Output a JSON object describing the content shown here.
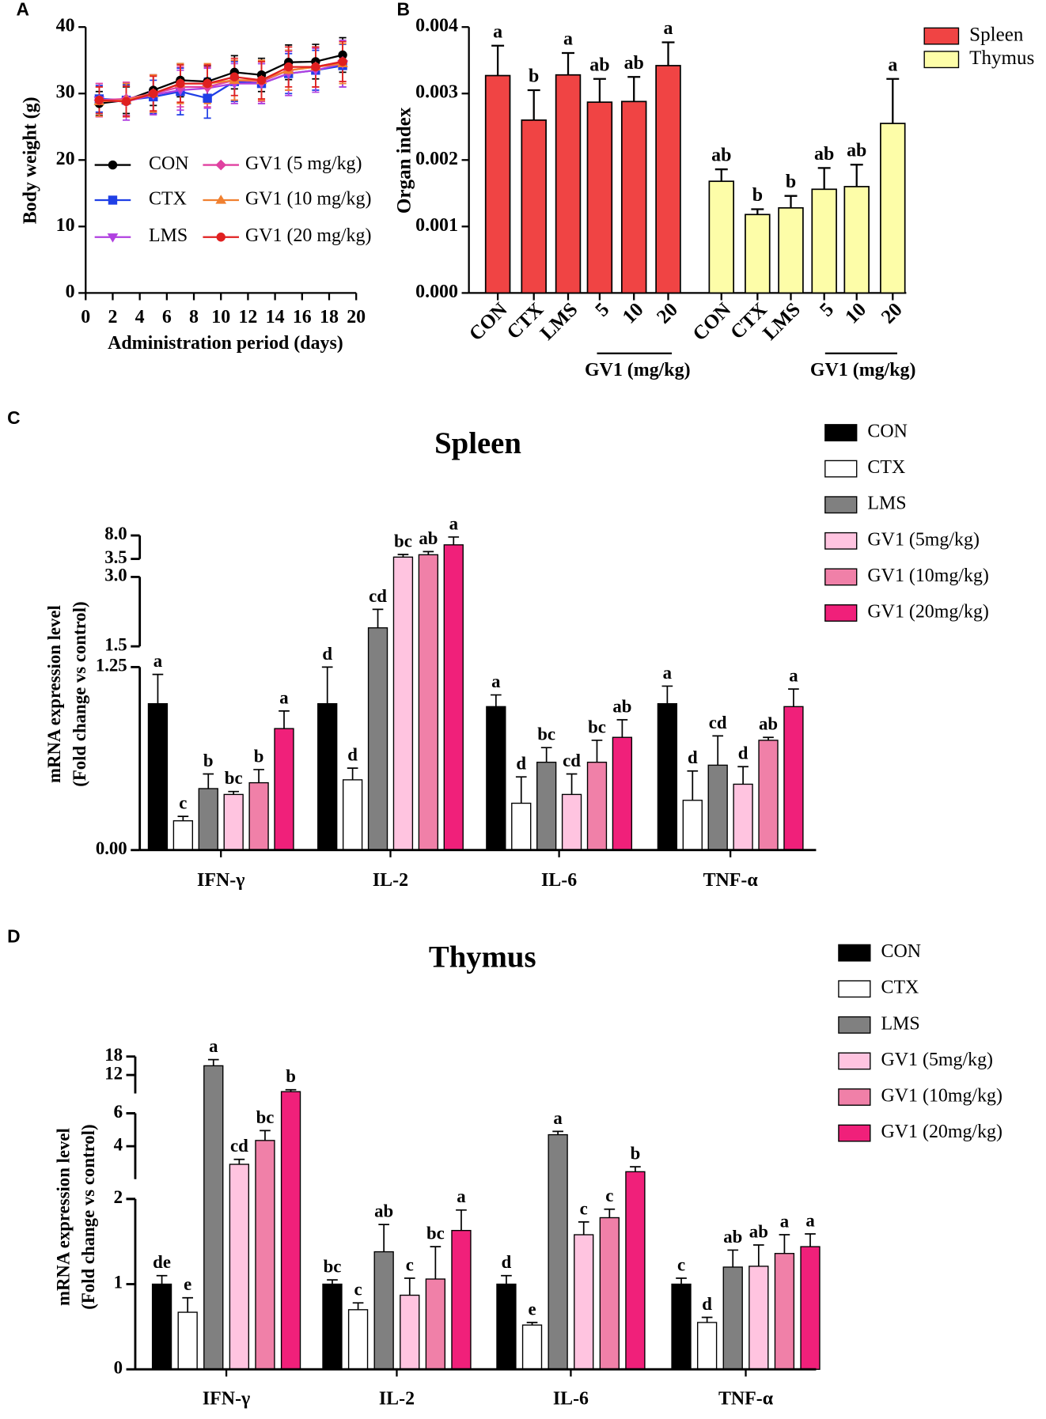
{
  "chart_data": [
    {
      "panel": "A",
      "type": "line",
      "x_label": "Administration period (days)",
      "y_label": "Body weight (g)",
      "x": [
        1,
        3,
        5,
        7,
        9,
        11,
        13,
        15,
        17,
        19
      ],
      "xlim": [
        0,
        20
      ],
      "xticks": [
        0,
        2,
        4,
        6,
        8,
        10,
        12,
        14,
        16,
        18,
        20
      ],
      "ylim": [
        0,
        40
      ],
      "yticks": [
        0,
        10,
        20,
        30,
        40
      ],
      "series": [
        {
          "name": "CON",
          "color": "#000000",
          "marker": "circle",
          "values": [
            28.5,
            29,
            30.5,
            32,
            31.8,
            33.2,
            32.8,
            34.7,
            34.8,
            35.8
          ],
          "errors": [
            1.8,
            2,
            2.3,
            2.5,
            2.4,
            2.5,
            2.5,
            2.6,
            2.6,
            2.6
          ]
        },
        {
          "name": "CTX",
          "color": "#1f3fe6",
          "marker": "square",
          "values": [
            29.2,
            29,
            29.5,
            30.3,
            29.3,
            31.8,
            31.5,
            33,
            33.5,
            34.2
          ],
          "errors": [
            2,
            2.3,
            2.5,
            3.5,
            3,
            3,
            3,
            3,
            3,
            3.2
          ]
        },
        {
          "name": "LMS",
          "color": "#b040e0",
          "marker": "triangle-down",
          "values": [
            29,
            28.8,
            29.8,
            30.5,
            30.8,
            31.5,
            31.5,
            33,
            33.5,
            34.5
          ],
          "errors": [
            2.5,
            2.8,
            3,
            3,
            3,
            3,
            3,
            3.3,
            3.3,
            3.5
          ]
        },
        {
          "name": "GV1 (5 mg/kg)",
          "color": "#e040a0",
          "marker": "diamond",
          "values": [
            29,
            29.2,
            30,
            31,
            31,
            32,
            31.8,
            33.5,
            34,
            34.8
          ],
          "errors": [
            2.5,
            2.5,
            2.8,
            3,
            3,
            3,
            3,
            3,
            3,
            3
          ]
        },
        {
          "name": "GV1 (10 mg/kg)",
          "color": "#f08030",
          "marker": "triangle-up",
          "values": [
            28.8,
            29,
            30,
            31.5,
            31.5,
            32,
            32,
            33.5,
            34,
            34.5
          ],
          "errors": [
            2.2,
            2.5,
            2.8,
            3,
            3,
            3,
            3,
            3,
            3,
            3
          ]
        },
        {
          "name": "GV1 (20 mg/kg)",
          "color": "#e02020",
          "marker": "circle",
          "values": [
            29,
            28.8,
            30,
            31.5,
            31.5,
            32.5,
            32,
            34,
            34,
            34.8
          ],
          "errors": [
            2,
            2.3,
            2.6,
            2.8,
            2.8,
            2.8,
            2.8,
            3,
            3,
            3
          ]
        }
      ]
    },
    {
      "panel": "B",
      "type": "bar",
      "y_label": "Organ index",
      "ylim": [
        0,
        0.004
      ],
      "yticks": [
        {
          "value": 0,
          "label": "0.000"
        },
        {
          "value": 0.001,
          "label": "0.001"
        },
        {
          "value": 0.002,
          "label": "0.002"
        },
        {
          "value": 0.003,
          "label": "0.003"
        },
        {
          "value": 0.004,
          "label": "0.004"
        }
      ],
      "group_labels": [
        "GV1  (mg/kg)",
        "GV1  (mg/kg)"
      ],
      "series": [
        {
          "name": "Spleen",
          "color": "#f04444",
          "categories": [
            "CON",
            "CTX",
            "LMS",
            "5",
            "10",
            "20"
          ],
          "values": [
            0.00327,
            0.0026,
            0.00328,
            0.00287,
            0.00288,
            0.00342
          ],
          "errors": [
            0.00045,
            0.00045,
            0.00033,
            0.00035,
            0.00037,
            0.00035
          ],
          "letters": [
            "a",
            "b",
            "a",
            "ab",
            "ab",
            "a"
          ]
        },
        {
          "name": "Thymus",
          "color": "#fdfda8",
          "categories": [
            "CON",
            "CTX",
            "LMS",
            "5",
            "10",
            "20"
          ],
          "values": [
            0.00168,
            0.00118,
            0.00128,
            0.00156,
            0.0016,
            0.00255
          ],
          "errors": [
            0.00018,
            8e-05,
            0.00018,
            0.00032,
            0.00033,
            0.00067
          ],
          "letters": [
            "ab",
            "b",
            "b",
            "ab",
            "ab",
            "a"
          ]
        }
      ]
    },
    {
      "panel": "C",
      "type": "broken_bar",
      "title": "Spleen",
      "y_label": [
        "mRNA expression level",
        "(Fold change vs control)"
      ],
      "categories": [
        "IFN-γ",
        "IL-2",
        "IL-6",
        "TNF-α"
      ],
      "y_segments": [
        {
          "ylim": [
            0,
            1.25
          ],
          "yticks": [
            {
              "value": 0,
              "label": "0.00"
            },
            1.25
          ]
        },
        {
          "ylim": [
            1.5,
            3.0
          ],
          "yticks": [
            1.5,
            {
              "value": 3.0,
              "label": "3.0"
            }
          ]
        },
        {
          "ylim": [
            3.5,
            8.0
          ],
          "yticks": [
            3.5,
            {
              "value": 8.0,
              "label": "8.0"
            }
          ]
        }
      ],
      "series": [
        {
          "name": "CON",
          "color": "#000000",
          "values": [
            1.0,
            1.0,
            0.98,
            1.0
          ],
          "errors": [
            0.2,
            0.25,
            0.08,
            0.12
          ],
          "letters": [
            "a",
            "d",
            "a",
            "a"
          ]
        },
        {
          "name": "CTX",
          "color": "#ffffff",
          "values": [
            0.2,
            0.48,
            0.32,
            0.34
          ],
          "errors": [
            0.03,
            0.08,
            0.18,
            0.2
          ],
          "letters": [
            "c",
            "d",
            "d",
            "d"
          ]
        },
        {
          "name": "LMS",
          "color": "#808080",
          "values": [
            0.42,
            1.9,
            0.6,
            0.58
          ],
          "errors": [
            0.1,
            0.4,
            0.1,
            0.2
          ],
          "letters": [
            "b",
            "cd",
            "bc",
            "cd"
          ]
        },
        {
          "name": "GV1 (5mg/kg)",
          "color": "#ffc4e0",
          "values": [
            0.38,
            3.85,
            0.38,
            0.45
          ],
          "errors": [
            0.02,
            0.5,
            0.14,
            0.12
          ],
          "letters": [
            "bc",
            "bc",
            "cd",
            "d"
          ]
        },
        {
          "name": "GV1 (10mg/kg)",
          "color": "#f080a8",
          "values": [
            0.46,
            4.3,
            0.6,
            0.75
          ],
          "errors": [
            0.09,
            0.6,
            0.15,
            0.02
          ],
          "letters": [
            "b",
            "ab",
            "bc",
            "ab"
          ]
        },
        {
          "name": "GV1 (20mg/kg)",
          "color": "#f0207a",
          "values": [
            0.83,
            6.2,
            0.77,
            0.98
          ],
          "errors": [
            0.12,
            1.5,
            0.12,
            0.12
          ],
          "letters": [
            "a",
            "a",
            "ab",
            "a"
          ]
        }
      ]
    },
    {
      "panel": "D",
      "type": "broken_bar",
      "title": "Thymus",
      "y_label": [
        "mRNA expression level",
        "(Fold change vs control)"
      ],
      "categories": [
        "IFN-γ",
        "IL-2",
        "IL-6",
        "TNF-α"
      ],
      "y_segments": [
        {
          "ylim": [
            0,
            2
          ],
          "yticks": [
            0,
            1,
            2
          ]
        },
        {
          "ylim": [
            2,
            6
          ],
          "yticks": [
            2,
            4,
            6
          ]
        },
        {
          "ylim": [
            6,
            18
          ],
          "yticks": [
            6,
            12,
            18
          ]
        }
      ],
      "series": [
        {
          "name": "CON",
          "color": "#000000",
          "values": [
            1.0,
            1.0,
            1.0,
            1.0
          ],
          "errors": [
            0.1,
            0.05,
            0.1,
            0.07
          ],
          "letters": [
            "de",
            "bc",
            "d",
            "c"
          ]
        },
        {
          "name": "CTX",
          "color": "#ffffff",
          "values": [
            0.67,
            0.7,
            0.52,
            0.55
          ],
          "errors": [
            0.17,
            0.08,
            0.03,
            0.06
          ],
          "letters": [
            "e",
            "c",
            "e",
            "d"
          ]
        },
        {
          "name": "LMS",
          "color": "#808080",
          "values": [
            15,
            1.38,
            4.7,
            1.2
          ],
          "errors": [
            2,
            0.32,
            0.2,
            0.2
          ],
          "letters": [
            "a",
            "ab",
            "a",
            "ab"
          ]
        },
        {
          "name": "GV1 (5mg/kg)",
          "color": "#ffc4e0",
          "values": [
            2.9,
            0.87,
            1.58,
            1.21
          ],
          "errors": [
            0.3,
            0.2,
            0.15,
            0.25
          ],
          "letters": [
            "cd",
            "c",
            "c",
            "ab"
          ]
        },
        {
          "name": "GV1 (10mg/kg)",
          "color": "#f080a8",
          "values": [
            4.35,
            1.06,
            1.78,
            1.36
          ],
          "errors": [
            0.6,
            0.38,
            0.1,
            0.22
          ],
          "letters": [
            "bc",
            "bc",
            "c",
            "a"
          ]
        },
        {
          "name": "GV1 (20mg/kg)",
          "color": "#f0207a",
          "values": [
            6.6,
            1.63,
            2.45,
            1.44
          ],
          "errors": [
            0.6,
            0.24,
            0.3,
            0.15
          ],
          "letters": [
            "b",
            "a",
            "b",
            "a"
          ]
        }
      ]
    }
  ]
}
